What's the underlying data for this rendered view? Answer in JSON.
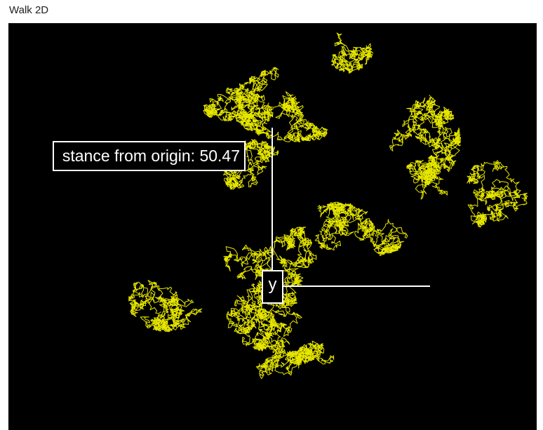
{
  "window": {
    "title": "Walk 2D"
  },
  "view": {
    "background": "#000000",
    "path_color": "#e6e600",
    "axis_color": "#ffffff",
    "distance_label": "stance from origin: 50.47",
    "distance_from_origin": 50.47,
    "axis_label": "y"
  }
}
